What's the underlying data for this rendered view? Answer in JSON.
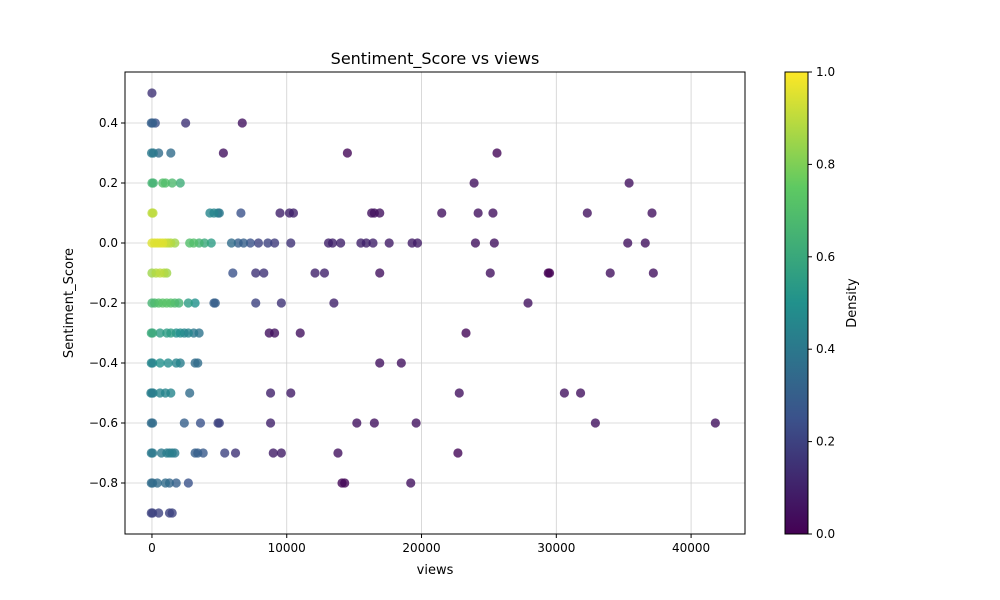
{
  "chart_data": {
    "type": "scatter",
    "title": "Sentiment_Score vs views",
    "xlabel": "views",
    "ylabel": "Sentiment_Score",
    "xlim": [
      -2000,
      44000
    ],
    "ylim": [
      -0.97,
      0.57
    ],
    "xticks": [
      0,
      10000,
      20000,
      30000,
      40000
    ],
    "xtick_labels": [
      "0",
      "10000",
      "20000",
      "30000",
      "40000"
    ],
    "yticks": [
      -0.8,
      -0.6,
      -0.4,
      -0.2,
      0.0,
      0.2,
      0.4
    ],
    "ytick_labels": [
      "−0.8",
      "−0.6",
      "−0.4",
      "−0.2",
      "0.0",
      "0.2",
      "0.4"
    ],
    "grid": true,
    "colormap": "viridis",
    "colorbar": {
      "label": "Density",
      "range": [
        0,
        1
      ],
      "ticks": [
        0,
        0.2,
        0.4,
        0.6,
        0.8,
        1.0
      ],
      "tick_labels": [
        "0.0",
        "0.2",
        "0.4",
        "0.6",
        "0.8",
        "1.0"
      ]
    },
    "colors": [
      "#440154",
      "#3b528b",
      "#21918c",
      "#5ec962",
      "#fde725"
    ],
    "points": [
      {
        "x": 0,
        "y": 0.5,
        "c": 0.15
      },
      {
        "x": -50,
        "y": 0.4,
        "c": 0.3
      },
      {
        "x": 50,
        "y": 0.4,
        "c": 0.3
      },
      {
        "x": 250,
        "y": 0.4,
        "c": 0.25
      },
      {
        "x": 2500,
        "y": 0.4,
        "c": 0.15
      },
      {
        "x": 6700,
        "y": 0.4,
        "c": 0.05
      },
      {
        "x": -30,
        "y": 0.3,
        "c": 0.4
      },
      {
        "x": 100,
        "y": 0.3,
        "c": 0.4
      },
      {
        "x": 500,
        "y": 0.3,
        "c": 0.35
      },
      {
        "x": 1400,
        "y": 0.3,
        "c": 0.35
      },
      {
        "x": 5300,
        "y": 0.3,
        "c": 0.05
      },
      {
        "x": 14500,
        "y": 0.3,
        "c": 0.02
      },
      {
        "x": 25600,
        "y": 0.3,
        "c": 0.02
      },
      {
        "x": 0,
        "y": 0.2,
        "c": 0.65
      },
      {
        "x": 100,
        "y": 0.2,
        "c": 0.65
      },
      {
        "x": 800,
        "y": 0.2,
        "c": 0.7
      },
      {
        "x": 1000,
        "y": 0.2,
        "c": 0.7
      },
      {
        "x": 1500,
        "y": 0.2,
        "c": 0.68
      },
      {
        "x": 2100,
        "y": 0.2,
        "c": 0.62
      },
      {
        "x": 23900,
        "y": 0.2,
        "c": 0.05
      },
      {
        "x": 35400,
        "y": 0.2,
        "c": 0.05
      },
      {
        "x": 0,
        "y": 0.1,
        "c": 0.9
      },
      {
        "x": 80,
        "y": 0.1,
        "c": 0.9
      },
      {
        "x": 4300,
        "y": 0.1,
        "c": 0.45
      },
      {
        "x": 4600,
        "y": 0.1,
        "c": 0.45
      },
      {
        "x": 4900,
        "y": 0.1,
        "c": 0.4
      },
      {
        "x": 5000,
        "y": 0.1,
        "c": 0.4
      },
      {
        "x": 6600,
        "y": 0.1,
        "c": 0.25
      },
      {
        "x": 9500,
        "y": 0.1,
        "c": 0.1
      },
      {
        "x": 10200,
        "y": 0.1,
        "c": 0.1
      },
      {
        "x": 10500,
        "y": 0.1,
        "c": 0.1
      },
      {
        "x": 16300,
        "y": 0.1,
        "c": 0.05
      },
      {
        "x": 16500,
        "y": 0.1,
        "c": 0.05
      },
      {
        "x": 16900,
        "y": 0.1,
        "c": 0.05
      },
      {
        "x": 21500,
        "y": 0.1,
        "c": 0.05
      },
      {
        "x": 24200,
        "y": 0.1,
        "c": 0.05
      },
      {
        "x": 25300,
        "y": 0.1,
        "c": 0.05
      },
      {
        "x": 32300,
        "y": 0.1,
        "c": 0.05
      },
      {
        "x": 37100,
        "y": 0.1,
        "c": 0.05
      },
      {
        "x": 0,
        "y": 0.0,
        "c": 0.95
      },
      {
        "x": 200,
        "y": 0.0,
        "c": 0.95
      },
      {
        "x": 400,
        "y": 0.0,
        "c": 0.95
      },
      {
        "x": 600,
        "y": 0.0,
        "c": 0.95
      },
      {
        "x": 800,
        "y": 0.0,
        "c": 0.95
      },
      {
        "x": 1000,
        "y": 0.0,
        "c": 0.92
      },
      {
        "x": 1200,
        "y": 0.0,
        "c": 0.9
      },
      {
        "x": 1400,
        "y": 0.0,
        "c": 0.88
      },
      {
        "x": 1700,
        "y": 0.0,
        "c": 0.85
      },
      {
        "x": 2800,
        "y": 0.0,
        "c": 0.7
      },
      {
        "x": 3100,
        "y": 0.0,
        "c": 0.7
      },
      {
        "x": 3500,
        "y": 0.0,
        "c": 0.65
      },
      {
        "x": 3900,
        "y": 0.0,
        "c": 0.6
      },
      {
        "x": 4400,
        "y": 0.0,
        "c": 0.55
      },
      {
        "x": 5900,
        "y": 0.0,
        "c": 0.35
      },
      {
        "x": 6400,
        "y": 0.0,
        "c": 0.3
      },
      {
        "x": 6800,
        "y": 0.0,
        "c": 0.3
      },
      {
        "x": 7300,
        "y": 0.0,
        "c": 0.25
      },
      {
        "x": 7900,
        "y": 0.0,
        "c": 0.2
      },
      {
        "x": 8600,
        "y": 0.0,
        "c": 0.2
      },
      {
        "x": 9100,
        "y": 0.0,
        "c": 0.18
      },
      {
        "x": 10300,
        "y": 0.0,
        "c": 0.15
      },
      {
        "x": 13100,
        "y": 0.0,
        "c": 0.1
      },
      {
        "x": 13400,
        "y": 0.0,
        "c": 0.1
      },
      {
        "x": 14000,
        "y": 0.0,
        "c": 0.1
      },
      {
        "x": 15500,
        "y": 0.0,
        "c": 0.1
      },
      {
        "x": 15900,
        "y": 0.0,
        "c": 0.1
      },
      {
        "x": 16400,
        "y": 0.0,
        "c": 0.1
      },
      {
        "x": 17600,
        "y": 0.0,
        "c": 0.08
      },
      {
        "x": 19300,
        "y": 0.0,
        "c": 0.08
      },
      {
        "x": 19700,
        "y": 0.0,
        "c": 0.08
      },
      {
        "x": 24000,
        "y": 0.0,
        "c": 0.05
      },
      {
        "x": 25400,
        "y": 0.0,
        "c": 0.05
      },
      {
        "x": 35300,
        "y": 0.0,
        "c": 0.05
      },
      {
        "x": 36600,
        "y": 0.0,
        "c": 0.05
      },
      {
        "x": 0,
        "y": -0.1,
        "c": 0.85
      },
      {
        "x": 300,
        "y": -0.1,
        "c": 0.88
      },
      {
        "x": 600,
        "y": -0.1,
        "c": 0.9
      },
      {
        "x": 900,
        "y": -0.1,
        "c": 0.88
      },
      {
        "x": 1100,
        "y": -0.1,
        "c": 0.85
      },
      {
        "x": 6000,
        "y": -0.1,
        "c": 0.25
      },
      {
        "x": 7700,
        "y": -0.1,
        "c": 0.15
      },
      {
        "x": 8300,
        "y": -0.1,
        "c": 0.15
      },
      {
        "x": 12100,
        "y": -0.1,
        "c": 0.1
      },
      {
        "x": 12800,
        "y": -0.1,
        "c": 0.1
      },
      {
        "x": 16900,
        "y": -0.1,
        "c": 0.05
      },
      {
        "x": 25100,
        "y": -0.1,
        "c": 0.05
      },
      {
        "x": 29400,
        "y": -0.1,
        "c": 0.0
      },
      {
        "x": 29500,
        "y": -0.1,
        "c": 0.0
      },
      {
        "x": 34000,
        "y": -0.1,
        "c": 0.05
      },
      {
        "x": 37200,
        "y": -0.1,
        "c": 0.05
      },
      {
        "x": 0,
        "y": -0.2,
        "c": 0.65
      },
      {
        "x": 200,
        "y": -0.2,
        "c": 0.68
      },
      {
        "x": 500,
        "y": -0.2,
        "c": 0.7
      },
      {
        "x": 800,
        "y": -0.2,
        "c": 0.72
      },
      {
        "x": 1100,
        "y": -0.2,
        "c": 0.72
      },
      {
        "x": 1400,
        "y": -0.2,
        "c": 0.7
      },
      {
        "x": 1700,
        "y": -0.2,
        "c": 0.68
      },
      {
        "x": 2000,
        "y": -0.2,
        "c": 0.65
      },
      {
        "x": 2700,
        "y": -0.2,
        "c": 0.55
      },
      {
        "x": 3200,
        "y": -0.2,
        "c": 0.5
      },
      {
        "x": 4600,
        "y": -0.2,
        "c": 0.3
      },
      {
        "x": 4700,
        "y": -0.2,
        "c": 0.3
      },
      {
        "x": 7700,
        "y": -0.2,
        "c": 0.2
      },
      {
        "x": 9600,
        "y": -0.2,
        "c": 0.15
      },
      {
        "x": 13500,
        "y": -0.2,
        "c": 0.1
      },
      {
        "x": 27900,
        "y": -0.2,
        "c": 0.05
      },
      {
        "x": -50,
        "y": -0.3,
        "c": 0.6
      },
      {
        "x": 50,
        "y": -0.3,
        "c": 0.6
      },
      {
        "x": 600,
        "y": -0.3,
        "c": 0.55
      },
      {
        "x": 1100,
        "y": -0.3,
        "c": 0.55
      },
      {
        "x": 1400,
        "y": -0.3,
        "c": 0.55
      },
      {
        "x": 1800,
        "y": -0.3,
        "c": 0.5
      },
      {
        "x": 2100,
        "y": -0.3,
        "c": 0.48
      },
      {
        "x": 2400,
        "y": -0.3,
        "c": 0.45
      },
      {
        "x": 2700,
        "y": -0.3,
        "c": 0.45
      },
      {
        "x": 3100,
        "y": -0.3,
        "c": 0.4
      },
      {
        "x": 3500,
        "y": -0.3,
        "c": 0.38
      },
      {
        "x": 8700,
        "y": -0.3,
        "c": 0.05
      },
      {
        "x": 9100,
        "y": -0.3,
        "c": 0.05
      },
      {
        "x": 11000,
        "y": -0.3,
        "c": 0.05
      },
      {
        "x": 23300,
        "y": -0.3,
        "c": 0.02
      },
      {
        "x": -50,
        "y": -0.4,
        "c": 0.45
      },
      {
        "x": 50,
        "y": -0.4,
        "c": 0.45
      },
      {
        "x": 600,
        "y": -0.4,
        "c": 0.5
      },
      {
        "x": 1200,
        "y": -0.4,
        "c": 0.48
      },
      {
        "x": 1800,
        "y": -0.4,
        "c": 0.45
      },
      {
        "x": 2100,
        "y": -0.4,
        "c": 0.42
      },
      {
        "x": 3200,
        "y": -0.4,
        "c": 0.35
      },
      {
        "x": 3400,
        "y": -0.4,
        "c": 0.35
      },
      {
        "x": 16900,
        "y": -0.4,
        "c": 0.05
      },
      {
        "x": 18500,
        "y": -0.4,
        "c": 0.05
      },
      {
        "x": -80,
        "y": -0.5,
        "c": 0.42
      },
      {
        "x": 0,
        "y": -0.5,
        "c": 0.42
      },
      {
        "x": 80,
        "y": -0.5,
        "c": 0.42
      },
      {
        "x": 600,
        "y": -0.5,
        "c": 0.45
      },
      {
        "x": 1000,
        "y": -0.5,
        "c": 0.45
      },
      {
        "x": 1400,
        "y": -0.5,
        "c": 0.45
      },
      {
        "x": 2800,
        "y": -0.5,
        "c": 0.35
      },
      {
        "x": 8800,
        "y": -0.5,
        "c": 0.1
      },
      {
        "x": 10300,
        "y": -0.5,
        "c": 0.08
      },
      {
        "x": 22800,
        "y": -0.5,
        "c": 0.05
      },
      {
        "x": 30600,
        "y": -0.5,
        "c": 0.05
      },
      {
        "x": 31800,
        "y": -0.5,
        "c": 0.05
      },
      {
        "x": -50,
        "y": -0.6,
        "c": 0.35
      },
      {
        "x": 50,
        "y": -0.6,
        "c": 0.35
      },
      {
        "x": 2400,
        "y": -0.6,
        "c": 0.3
      },
      {
        "x": 3600,
        "y": -0.6,
        "c": 0.25
      },
      {
        "x": 4900,
        "y": -0.6,
        "c": 0.2
      },
      {
        "x": 5000,
        "y": -0.6,
        "c": 0.2
      },
      {
        "x": 8800,
        "y": -0.6,
        "c": 0.1
      },
      {
        "x": 15200,
        "y": -0.6,
        "c": 0.05
      },
      {
        "x": 16500,
        "y": -0.6,
        "c": 0.05
      },
      {
        "x": 19600,
        "y": -0.6,
        "c": 0.05
      },
      {
        "x": 32900,
        "y": -0.6,
        "c": 0.05
      },
      {
        "x": 41800,
        "y": -0.6,
        "c": 0.05
      },
      {
        "x": -50,
        "y": -0.7,
        "c": 0.4
      },
      {
        "x": 50,
        "y": -0.7,
        "c": 0.4
      },
      {
        "x": 700,
        "y": -0.7,
        "c": 0.4
      },
      {
        "x": 1100,
        "y": -0.7,
        "c": 0.42
      },
      {
        "x": 1300,
        "y": -0.7,
        "c": 0.42
      },
      {
        "x": 1500,
        "y": -0.7,
        "c": 0.42
      },
      {
        "x": 1700,
        "y": -0.7,
        "c": 0.4
      },
      {
        "x": 3200,
        "y": -0.7,
        "c": 0.3
      },
      {
        "x": 3400,
        "y": -0.7,
        "c": 0.3
      },
      {
        "x": 3800,
        "y": -0.7,
        "c": 0.28
      },
      {
        "x": 5400,
        "y": -0.7,
        "c": 0.2
      },
      {
        "x": 6200,
        "y": -0.7,
        "c": 0.15
      },
      {
        "x": 9000,
        "y": -0.7,
        "c": 0.08
      },
      {
        "x": 9600,
        "y": -0.7,
        "c": 0.08
      },
      {
        "x": 13800,
        "y": -0.7,
        "c": 0.05
      },
      {
        "x": 22700,
        "y": -0.7,
        "c": 0.02
      },
      {
        "x": -50,
        "y": -0.8,
        "c": 0.35
      },
      {
        "x": 50,
        "y": -0.8,
        "c": 0.35
      },
      {
        "x": 400,
        "y": -0.8,
        "c": 0.35
      },
      {
        "x": 1000,
        "y": -0.8,
        "c": 0.35
      },
      {
        "x": 1300,
        "y": -0.8,
        "c": 0.33
      },
      {
        "x": 1800,
        "y": -0.8,
        "c": 0.3
      },
      {
        "x": 2700,
        "y": -0.8,
        "c": 0.25
      },
      {
        "x": 14100,
        "y": -0.8,
        "c": 0.02
      },
      {
        "x": 14300,
        "y": -0.8,
        "c": 0.02
      },
      {
        "x": 19200,
        "y": -0.8,
        "c": 0.05
      },
      {
        "x": -50,
        "y": -0.9,
        "c": 0.2
      },
      {
        "x": 50,
        "y": -0.9,
        "c": 0.2
      },
      {
        "x": 500,
        "y": -0.9,
        "c": 0.2
      },
      {
        "x": 1300,
        "y": -0.9,
        "c": 0.2
      },
      {
        "x": 1500,
        "y": -0.9,
        "c": 0.2
      }
    ]
  }
}
